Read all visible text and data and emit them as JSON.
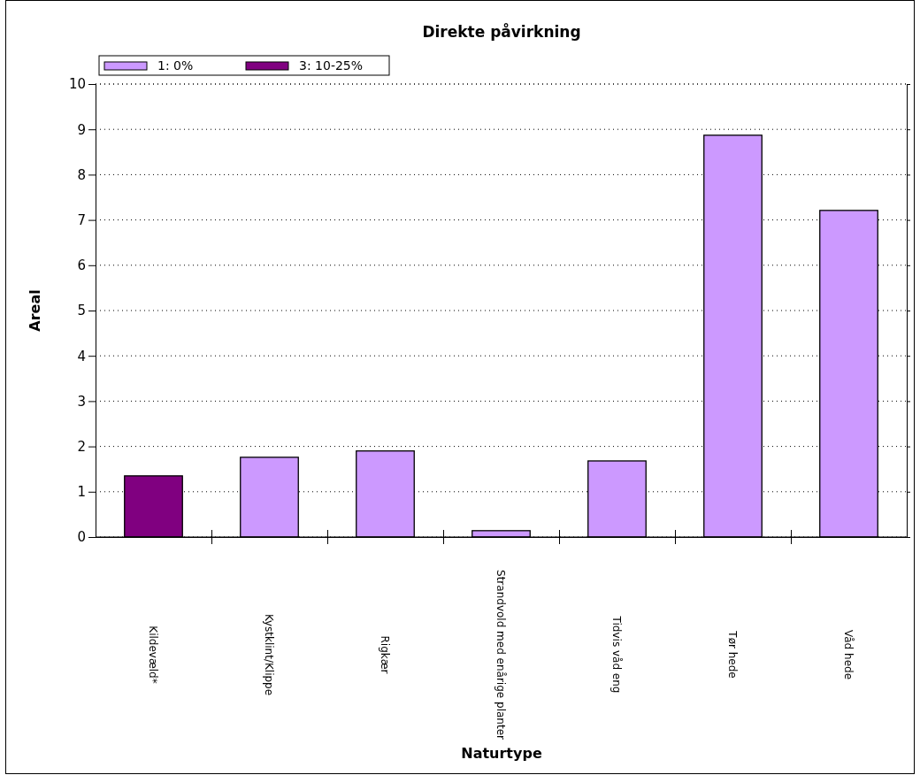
{
  "chart_data": {
    "type": "bar",
    "title": "Direkte påvirkning",
    "xlabel": "Naturtype",
    "ylabel": "Areal",
    "categories": [
      "Kildevæld*",
      "Kystklint/Klippe",
      "Rigkær",
      "Strandvold med enårige planter",
      "Tidvis våd eng",
      "Tør hede",
      "Våd hede"
    ],
    "series": [
      {
        "name": "1: 0%",
        "color": "#cc99ff",
        "values": [
          null,
          1.76,
          1.9,
          0.14,
          1.68,
          8.87,
          7.21
        ]
      },
      {
        "name": "3: 10-25%",
        "color": "#800080",
        "values": [
          1.35,
          null,
          null,
          null,
          null,
          null,
          null
        ]
      }
    ],
    "ylim": [
      0,
      10
    ],
    "yticks": [
      0,
      1,
      2,
      3,
      4,
      5,
      6,
      7,
      8,
      9,
      10
    ],
    "grid": "y",
    "legend": "top left"
  }
}
